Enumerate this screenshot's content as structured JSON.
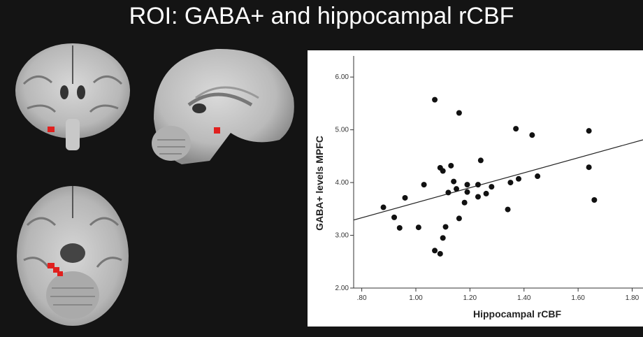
{
  "title": "ROI: GABA+ and hippocampal rCBF",
  "colors": {
    "background": "#141414",
    "roi": "#e0201e",
    "plot_bg": "#ffffff",
    "points": "#111111"
  },
  "chart_data": {
    "type": "scatter",
    "title": "",
    "xlabel": "Hippocampal rCBF",
    "ylabel": "GABA+ levels MPFC",
    "xlim": [
      0.77,
      1.84
    ],
    "ylim": [
      2.0,
      6.4
    ],
    "xticks": [
      ".80",
      "1.00",
      "1.20",
      "1.40",
      "1.60",
      "1.80"
    ],
    "xtick_values": [
      0.8,
      1.0,
      1.2,
      1.4,
      1.6,
      1.8
    ],
    "yticks": [
      "2.00",
      "3.00",
      "4.00",
      "5.00",
      "6.00"
    ],
    "ytick_values": [
      2.0,
      3.0,
      4.0,
      5.0,
      6.0
    ],
    "grid": false,
    "fit_line": {
      "x": [
        0.77,
        1.84
      ],
      "y": [
        3.29,
        4.81
      ]
    },
    "points": [
      {
        "x": 0.88,
        "y": 3.53
      },
      {
        "x": 0.92,
        "y": 3.34
      },
      {
        "x": 0.94,
        "y": 3.14
      },
      {
        "x": 0.96,
        "y": 3.71
      },
      {
        "x": 1.01,
        "y": 3.15
      },
      {
        "x": 1.03,
        "y": 3.96
      },
      {
        "x": 1.07,
        "y": 5.57
      },
      {
        "x": 1.07,
        "y": 2.71
      },
      {
        "x": 1.09,
        "y": 2.65
      },
      {
        "x": 1.09,
        "y": 4.28
      },
      {
        "x": 1.1,
        "y": 4.22
      },
      {
        "x": 1.1,
        "y": 2.95
      },
      {
        "x": 1.11,
        "y": 3.16
      },
      {
        "x": 1.12,
        "y": 3.81
      },
      {
        "x": 1.13,
        "y": 4.32
      },
      {
        "x": 1.14,
        "y": 4.02
      },
      {
        "x": 1.15,
        "y": 3.88
      },
      {
        "x": 1.16,
        "y": 5.32
      },
      {
        "x": 1.16,
        "y": 3.32
      },
      {
        "x": 1.18,
        "y": 3.62
      },
      {
        "x": 1.19,
        "y": 3.82
      },
      {
        "x": 1.19,
        "y": 3.96
      },
      {
        "x": 1.23,
        "y": 3.96
      },
      {
        "x": 1.23,
        "y": 3.73
      },
      {
        "x": 1.24,
        "y": 4.42
      },
      {
        "x": 1.26,
        "y": 3.79
      },
      {
        "x": 1.28,
        "y": 3.92
      },
      {
        "x": 1.34,
        "y": 3.49
      },
      {
        "x": 1.35,
        "y": 4.0
      },
      {
        "x": 1.37,
        "y": 5.02
      },
      {
        "x": 1.38,
        "y": 4.07
      },
      {
        "x": 1.43,
        "y": 4.9
      },
      {
        "x": 1.45,
        "y": 4.12
      },
      {
        "x": 1.64,
        "y": 4.98
      },
      {
        "x": 1.64,
        "y": 4.29
      },
      {
        "x": 1.66,
        "y": 3.67
      }
    ]
  }
}
